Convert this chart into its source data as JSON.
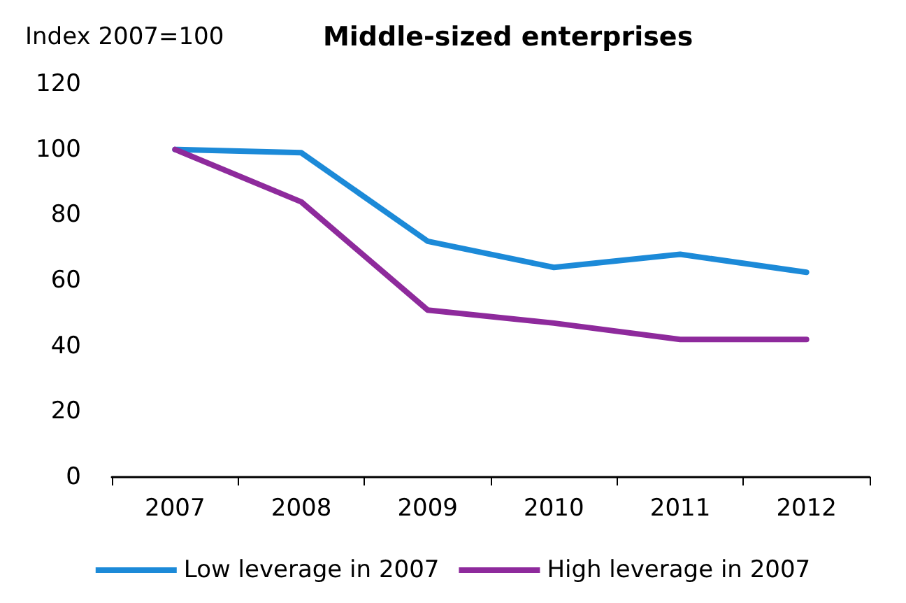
{
  "chart_data": {
    "type": "line",
    "title": "Middle-sized enterprises",
    "ylabel": "Index 2007=100",
    "categories": [
      "2007",
      "2008",
      "2009",
      "2010",
      "2011",
      "2012"
    ],
    "series": [
      {
        "name": "Low leverage in 2007",
        "color": "#1c8ad8",
        "values": [
          100,
          99,
          72,
          64,
          68,
          62.5
        ]
      },
      {
        "name": "High leverage in 2007",
        "color": "#8e2a9c",
        "values": [
          100,
          84,
          51,
          47,
          42,
          42
        ]
      }
    ],
    "ylim": [
      0,
      120
    ],
    "yticks": [
      0,
      20,
      40,
      60,
      80,
      100,
      120
    ],
    "grid": false,
    "legend": "bottom",
    "marker": "none",
    "line_style": "solid"
  }
}
